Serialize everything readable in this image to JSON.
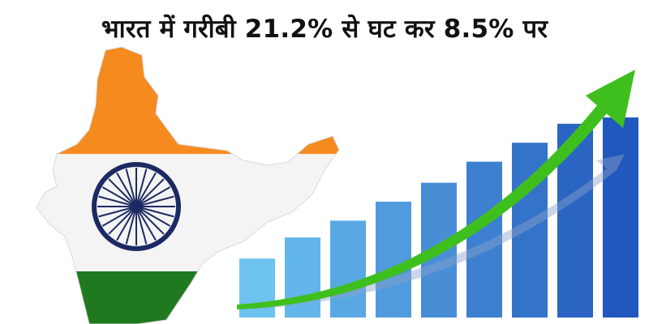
{
  "headline": "भारत में गरीबी 21.2% से घट कर 8.5% पर",
  "graphic": {
    "bar_levels": [
      0.28,
      0.38,
      0.46,
      0.55,
      0.64,
      0.74,
      0.83,
      0.92,
      0.95
    ],
    "colors": {
      "saffron": "#f58a1f",
      "white_band": "#f4f4f4",
      "green": "#1f7a1f",
      "chakra": "#1c2a63",
      "bar_light": "#6cc3f0",
      "bar_dark": "#2158bd",
      "arrow": "#3fbf1e"
    },
    "icons": [
      "india-map-icon",
      "ashoka-chakra-icon",
      "trend-arrow-icon"
    ]
  }
}
